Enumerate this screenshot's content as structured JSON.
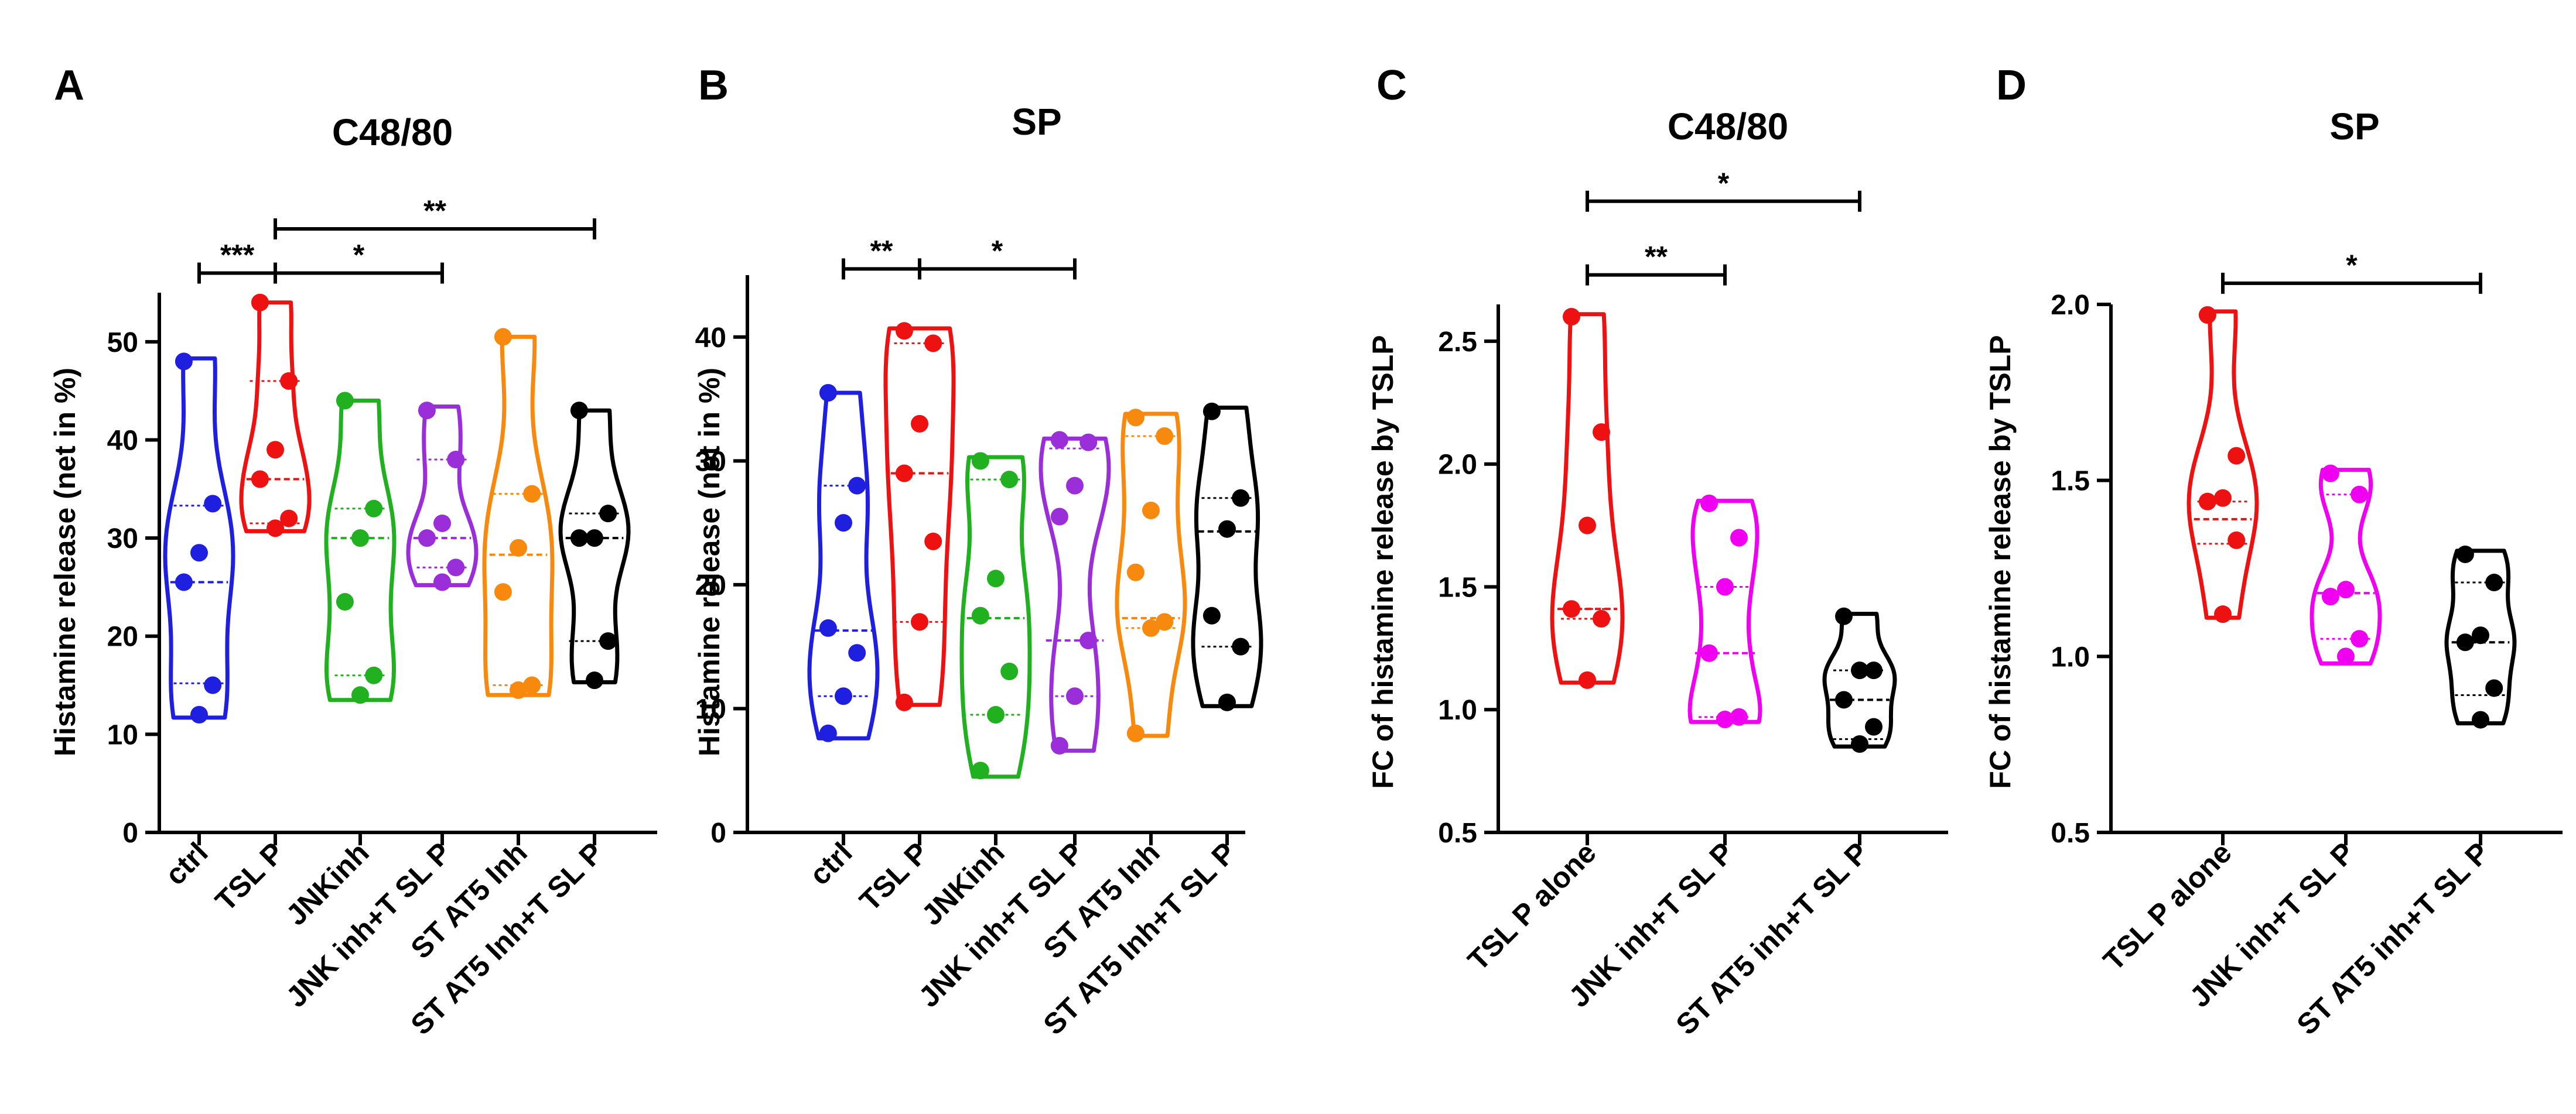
{
  "chart_data": [
    {
      "panel": "A",
      "type": "violin",
      "title": "C48/80",
      "ylabel": "Histamine release (net in %)",
      "ylim": [
        0,
        55
      ],
      "yticks": [
        0,
        10,
        20,
        30,
        40,
        50
      ],
      "categories": [
        "ctrl",
        "TSL P",
        "JNKinh",
        "JNK inh+T SL P",
        "ST AT5 Inh",
        "ST AT5 Inh+T SL P"
      ],
      "colors": [
        "#1f1fe0",
        "#ee1111",
        "#20b020",
        "#9a2ed8",
        "#f7890f",
        "#000000"
      ],
      "series": [
        {
          "name": "ctrl",
          "points": [
            48,
            33.5,
            28.5,
            25.5,
            15,
            12
          ],
          "min": 11.7,
          "max": 48.3,
          "median": 25.5,
          "q1": 15.2,
          "q3": 33.3
        },
        {
          "name": "TSL P",
          "points": [
            54,
            46,
            39,
            36,
            32,
            31
          ],
          "min": 30.7,
          "max": 54,
          "median": 36,
          "q1": 31.5,
          "q3": 46
        },
        {
          "name": "JNKinh",
          "points": [
            44,
            33,
            30,
            23.5,
            16,
            14
          ],
          "min": 13.5,
          "max": 44,
          "median": 30,
          "q1": 16,
          "q3": 33
        },
        {
          "name": "JNK inh+T SL P",
          "points": [
            43,
            38,
            31.5,
            30,
            27,
            25.5
          ],
          "min": 25.2,
          "max": 43.4,
          "median": 30,
          "q1": 27,
          "q3": 38
        },
        {
          "name": "ST AT5 Inh",
          "points": [
            50.5,
            34.5,
            29,
            24.5,
            15,
            14.5
          ],
          "min": 14,
          "max": 50.5,
          "median": 28.3,
          "q1": 15,
          "q3": 34.5
        },
        {
          "name": "ST AT5 Inh+T SL P",
          "points": [
            43,
            32.5,
            30,
            30,
            19.5,
            15.5
          ],
          "min": 15.3,
          "max": 43,
          "median": 30,
          "q1": 19.5,
          "q3": 32.5
        }
      ],
      "significance": [
        {
          "from": 0,
          "to": 1,
          "label": "***",
          "y": 57
        },
        {
          "from": 1,
          "to": 3,
          "label": "*",
          "y": 57
        },
        {
          "from": 1,
          "to": 5,
          "label": "**",
          "y": 61.5
        }
      ]
    },
    {
      "panel": "B",
      "type": "violin",
      "title": "SP",
      "ylabel": "Histamine release (net in %)",
      "ylim": [
        0,
        45
      ],
      "yticks": [
        0,
        10,
        20,
        30,
        40
      ],
      "categories": [
        "ctrl",
        "TSL P",
        "JNKinh",
        "JNK inh+T SL P",
        "ST AT5 Inh",
        "ST AT5 Inh+T SL P"
      ],
      "colors": [
        "#1f1fe0",
        "#ee1111",
        "#20b020",
        "#9a2ed8",
        "#f7890f",
        "#000000"
      ],
      "series": [
        {
          "name": "ctrl",
          "points": [
            35.5,
            28,
            25,
            16.5,
            14.5,
            11,
            8
          ],
          "min": 7.6,
          "max": 35.5,
          "median": 16.3,
          "q1": 11,
          "q3": 28
        },
        {
          "name": "TSL P",
          "points": [
            40.5,
            39.5,
            33,
            29,
            23.5,
            17,
            10.5
          ],
          "min": 10.3,
          "max": 40.7,
          "median": 29,
          "q1": 17,
          "q3": 39.5
        },
        {
          "name": "JNKinh",
          "points": [
            30,
            28.5,
            20.5,
            17.5,
            13,
            9.5,
            5
          ],
          "min": 4.5,
          "max": 30.3,
          "median": 17.3,
          "q1": 9.5,
          "q3": 28.5
        },
        {
          "name": "JNK inh+T SL P",
          "points": [
            31.7,
            31.5,
            28,
            25.5,
            15.5,
            11,
            7
          ],
          "min": 6.6,
          "max": 31.8,
          "median": 15.5,
          "q1": 11,
          "q3": 31
        },
        {
          "name": "ST AT5 Inh",
          "points": [
            33.5,
            32,
            26,
            21,
            17,
            16.5,
            8
          ],
          "min": 7.8,
          "max": 33.8,
          "median": 17.3,
          "q1": 16.5,
          "q3": 32
        },
        {
          "name": "ST AT5 Inh+T SL P",
          "points": [
            34,
            27,
            24.5,
            17.5,
            15,
            10.5
          ],
          "min": 10.2,
          "max": 34.3,
          "median": 24.3,
          "q1": 15,
          "q3": 27
        }
      ],
      "significance": [
        {
          "from": 0,
          "to": 1,
          "label": "**",
          "y": 45.5
        },
        {
          "from": 1,
          "to": 3,
          "label": "*",
          "y": 45.5
        }
      ]
    },
    {
      "panel": "C",
      "type": "violin",
      "title": "C48/80",
      "ylabel": "FC of histamine release by TSLP",
      "ylim": [
        0.5,
        2.65
      ],
      "yticks": [
        0.5,
        1.0,
        1.5,
        2.0,
        2.5
      ],
      "ytick_labels": [
        "0.5",
        "1.0",
        "1.5",
        "2.0",
        "2.5"
      ],
      "categories": [
        "TSL P alone",
        "JNK inh+T SL P",
        "ST AT5 inh+T SL P"
      ],
      "colors": [
        "#ee1111",
        "#f000f0",
        "#000000"
      ],
      "series": [
        {
          "name": "TSL P alone",
          "points": [
            2.6,
            2.13,
            1.75,
            1.41,
            1.37,
            1.12
          ],
          "min": 1.11,
          "max": 2.61,
          "median": 1.41,
          "q1": 1.37,
          "q3": 1.41
        },
        {
          "name": "JNK inh+T SL P",
          "points": [
            1.84,
            1.7,
            1.5,
            1.23,
            0.97,
            0.96
          ],
          "min": 0.95,
          "max": 1.85,
          "median": 1.23,
          "q1": 0.97,
          "q3": 1.5
        },
        {
          "name": "ST AT5 inh+T SL P",
          "points": [
            1.38,
            1.16,
            1.16,
            1.04,
            0.93,
            0.86
          ],
          "min": 0.85,
          "max": 1.39,
          "median": 1.04,
          "q1": 0.88,
          "q3": 1.16
        }
      ],
      "significance": [
        {
          "from": 0,
          "to": 1,
          "label": "**",
          "y": 2.77
        },
        {
          "from": 0,
          "to": 2,
          "label": "*",
          "y": 3.07
        }
      ]
    },
    {
      "panel": "D",
      "type": "violin",
      "title": "SP",
      "ylabel": "FC of histamine release by TSLP",
      "ylim": [
        0.5,
        2.0
      ],
      "yticks": [
        0.5,
        1.0,
        1.5,
        2.0
      ],
      "ytick_labels": [
        "0.5",
        "1.0",
        "1.5",
        "2.0"
      ],
      "categories": [
        "TSL P alone",
        "JNK inh+T SL P",
        "ST AT5 inh+T SL P"
      ],
      "colors": [
        "#ee1111",
        "#f000f0",
        "#000000"
      ],
      "series": [
        {
          "name": "TSL P alone",
          "points": [
            1.97,
            1.57,
            1.45,
            1.44,
            1.33,
            1.12
          ],
          "min": 1.11,
          "max": 1.98,
          "median": 1.39,
          "q1": 1.32,
          "q3": 1.44
        },
        {
          "name": "JNK inh+T SL P",
          "points": [
            1.52,
            1.46,
            1.19,
            1.17,
            1.05,
            1.0
          ],
          "min": 0.98,
          "max": 1.53,
          "median": 1.18,
          "q1": 1.05,
          "q3": 1.46
        },
        {
          "name": "ST AT5 inh+T SL P",
          "points": [
            1.29,
            1.21,
            1.06,
            1.04,
            0.91,
            0.82
          ],
          "min": 0.81,
          "max": 1.3,
          "median": 1.04,
          "q1": 0.89,
          "q3": 1.21
        }
      ],
      "significance": [
        {
          "from": 0,
          "to": 2,
          "label": "*",
          "y": 2.06
        }
      ]
    }
  ]
}
